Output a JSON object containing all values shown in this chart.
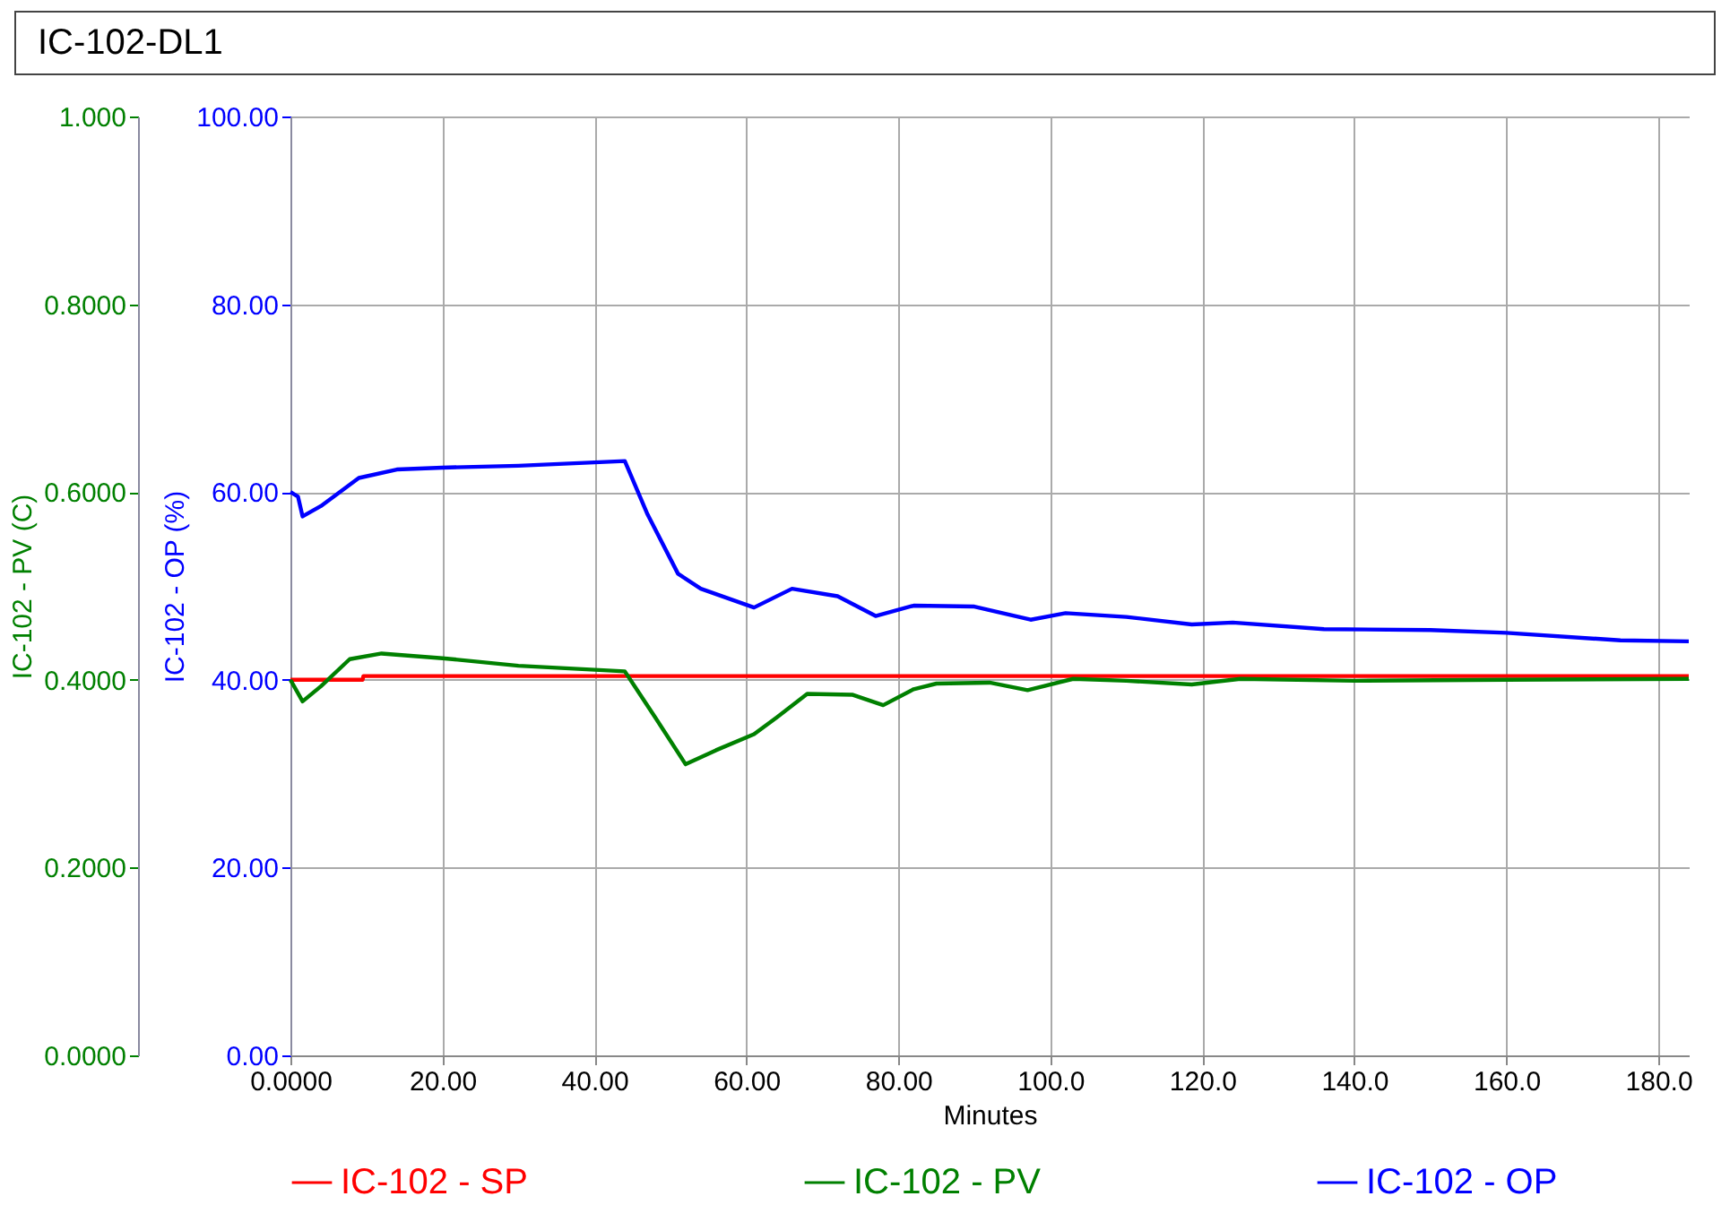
{
  "chart_data": {
    "type": "line",
    "title": "IC-102-DL1",
    "xlabel": "Minutes",
    "ylabel": "IC-102 - PV (C)",
    "y2label": "IC-102 - OP (%)",
    "xlim": [
      0,
      184
    ],
    "xticks": [
      {
        "value": 0,
        "label": "0.0000"
      },
      {
        "value": 20,
        "label": "20.00"
      },
      {
        "value": 40,
        "label": "40.00"
      },
      {
        "value": 60,
        "label": "60.00"
      },
      {
        "value": 80,
        "label": "80.00"
      },
      {
        "value": 100,
        "label": "100.0"
      },
      {
        "value": 120,
        "label": "120.0"
      },
      {
        "value": 140,
        "label": "140.0"
      },
      {
        "value": 160,
        "label": "160.0"
      },
      {
        "value": 180,
        "label": "180.0"
      }
    ],
    "ylim": [
      0,
      1
    ],
    "yticks": [
      {
        "value": 0,
        "label": "0.0000"
      },
      {
        "value": 0.2,
        "label": "0.2000"
      },
      {
        "value": 0.4,
        "label": "0.4000"
      },
      {
        "value": 0.6,
        "label": "0.6000"
      },
      {
        "value": 0.8,
        "label": "0.8000"
      },
      {
        "value": 1,
        "label": "1.000"
      }
    ],
    "y2lim": [
      0,
      100
    ],
    "y2ticks": [
      {
        "value": 0,
        "label": "0.00"
      },
      {
        "value": 20,
        "label": "20.00"
      },
      {
        "value": 40,
        "label": "40.00"
      },
      {
        "value": 60,
        "label": "60.00"
      },
      {
        "value": 80,
        "label": "80.00"
      },
      {
        "value": 100,
        "label": "100.00"
      }
    ],
    "grid": true,
    "legend": "bottom",
    "marker": "none",
    "line_style": "solid",
    "series": [
      {
        "name": "IC-102 - SP",
        "color": "#ff0000",
        "x": [
          0,
          9.5,
          9.6,
          184
        ],
        "values": [
          0.4,
          0.4,
          0.404,
          0.404
        ]
      },
      {
        "name": "IC-102 - PV",
        "color": "#008000",
        "x": [
          0,
          1.6,
          4,
          7.8,
          12,
          20,
          30,
          44,
          48,
          52,
          56,
          61,
          64,
          68,
          74,
          78,
          82,
          85,
          92,
          97,
          103,
          110,
          118.6,
          125,
          140,
          160,
          184
        ],
        "values": [
          0.4,
          0.377,
          0.393,
          0.422,
          0.428,
          0.423,
          0.415,
          0.409,
          0.36,
          0.31,
          0.325,
          0.342,
          0.36,
          0.385,
          0.384,
          0.373,
          0.39,
          0.396,
          0.397,
          0.389,
          0.401,
          0.399,
          0.395,
          0.401,
          0.399,
          0.4,
          0.401
        ]
      },
      {
        "name": "IC-102 - OP",
        "color": "#0000ff",
        "axis": "y2",
        "x": [
          0,
          1,
          1.6,
          4,
          9,
          14,
          20,
          30,
          44,
          47,
          51,
          54,
          61,
          66,
          72,
          77,
          82,
          90,
          97.4,
          102,
          110,
          118.6,
          124,
          136,
          150,
          160,
          175,
          184
        ],
        "values": [
          60,
          59.5,
          57.4,
          58.5,
          61.5,
          62.4,
          62.6,
          62.8,
          63.3,
          57.6,
          51.3,
          49.7,
          47.7,
          49.7,
          48.9,
          46.8,
          47.9,
          47.8,
          46.4,
          47.1,
          46.7,
          45.9,
          46.1,
          45.4,
          45.3,
          45,
          44.2,
          44.1
        ]
      }
    ]
  }
}
